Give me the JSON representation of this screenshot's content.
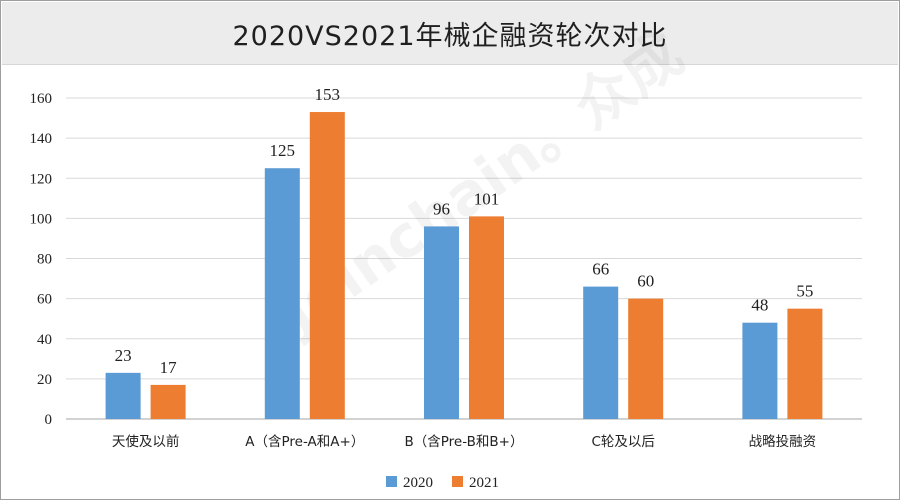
{
  "chart_data": {
    "type": "bar",
    "title": "2020VS2021年械企融资轮次对比",
    "categories": [
      "天使及以前",
      "A（含Pre-A和A+）",
      "B（含Pre-B和B+）",
      "C轮及以后",
      "战略投融资"
    ],
    "series": [
      {
        "name": "2020",
        "values": [
          23,
          125,
          96,
          66,
          48
        ],
        "color": "#5b9bd5"
      },
      {
        "name": "2021",
        "values": [
          17,
          153,
          101,
          60,
          55
        ],
        "color": "#ed7d31"
      }
    ],
    "ylim": [
      0,
      160
    ],
    "yticks": [
      0,
      20,
      40,
      60,
      80,
      100,
      120,
      140,
      160
    ],
    "grid": true,
    "legend_position": "bottom-center",
    "watermark": "Joinchain。众成"
  }
}
